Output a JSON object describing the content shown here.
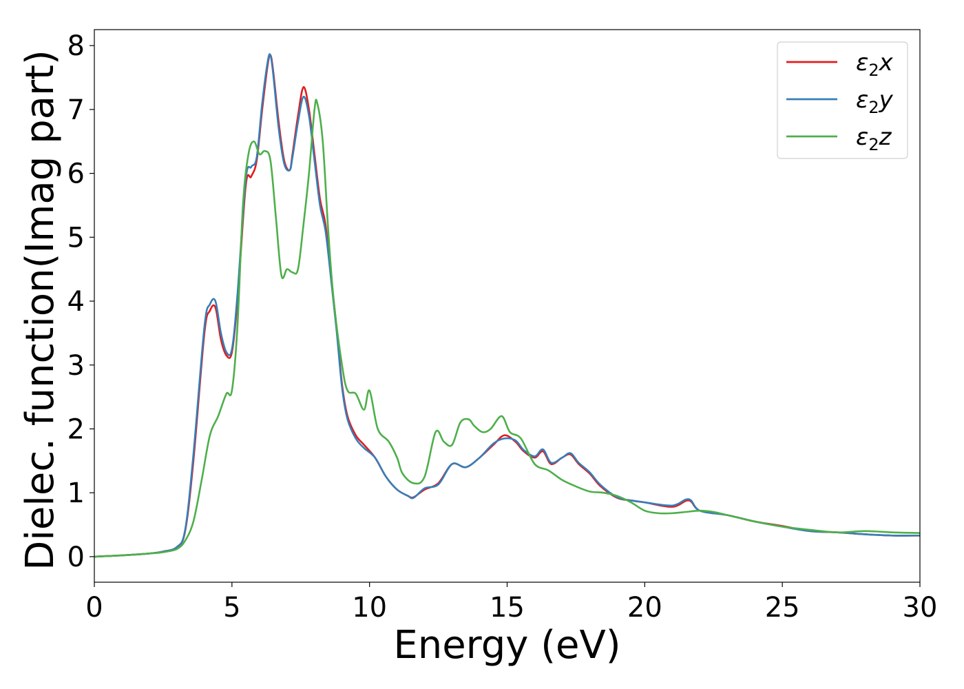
{
  "chart_data": {
    "type": "line",
    "xlabel": "Energy (eV)",
    "ylabel": "Dielec. function(Imag part)",
    "xlim": [
      0,
      30
    ],
    "ylim": [
      -0.4,
      8.25
    ],
    "xticks": [
      0,
      5,
      10,
      15,
      20,
      25,
      30
    ],
    "yticks": [
      0,
      1,
      2,
      3,
      4,
      5,
      6,
      7,
      8
    ],
    "grid": false,
    "legend_position": "top-right",
    "series": [
      {
        "name": "ε₂x",
        "legend_base": "ε",
        "legend_sub": "2",
        "legend_suffix": "x",
        "color": "#e41a1c",
        "x": [
          0,
          1,
          2,
          2.5,
          3,
          3.3,
          3.6,
          4.0,
          4.2,
          4.4,
          4.6,
          4.8,
          5.0,
          5.2,
          5.5,
          5.7,
          5.9,
          6.1,
          6.3,
          6.4,
          6.5,
          6.7,
          6.9,
          7.1,
          7.2,
          7.4,
          7.6,
          7.8,
          8.0,
          8.2,
          8.4,
          8.6,
          8.8,
          9.0,
          9.2,
          9.5,
          9.8,
          10.2,
          10.6,
          11.0,
          11.4,
          11.6,
          12.0,
          12.5,
          13.0,
          13.5,
          14.0,
          14.5,
          14.9,
          15.3,
          15.6,
          16.0,
          16.3,
          16.6,
          17.0,
          17.3,
          17.6,
          18.0,
          18.4,
          19.0,
          19.5,
          20.0,
          21.0,
          21.6,
          22.0,
          23.0,
          24.0,
          25.0,
          26.0,
          27.0,
          28.0,
          29.0,
          30.0
        ],
        "y": [
          0,
          0.02,
          0.05,
          0.08,
          0.15,
          0.4,
          1.5,
          3.5,
          3.85,
          3.9,
          3.4,
          3.15,
          3.2,
          4.0,
          5.8,
          5.95,
          6.2,
          7.0,
          7.7,
          7.85,
          7.6,
          6.8,
          6.2,
          6.05,
          6.3,
          6.9,
          7.35,
          7.0,
          6.3,
          5.6,
          5.2,
          4.4,
          3.6,
          2.7,
          2.2,
          1.9,
          1.75,
          1.55,
          1.25,
          1.05,
          0.95,
          0.93,
          1.05,
          1.15,
          1.45,
          1.4,
          1.55,
          1.75,
          1.9,
          1.8,
          1.65,
          1.55,
          1.65,
          1.45,
          1.55,
          1.6,
          1.45,
          1.3,
          1.1,
          0.92,
          0.88,
          0.85,
          0.78,
          0.88,
          0.72,
          0.65,
          0.55,
          0.48,
          0.4,
          0.38,
          0.35,
          0.33,
          0.33
        ]
      },
      {
        "name": "ε₂y",
        "legend_base": "ε",
        "legend_sub": "2",
        "legend_suffix": "y",
        "color": "#377eb8",
        "x": [
          0,
          1,
          2,
          2.5,
          3,
          3.3,
          3.6,
          4.0,
          4.2,
          4.4,
          4.6,
          4.8,
          5.0,
          5.2,
          5.5,
          5.7,
          5.9,
          6.1,
          6.3,
          6.4,
          6.5,
          6.7,
          6.9,
          7.1,
          7.2,
          7.4,
          7.6,
          7.8,
          8.0,
          8.2,
          8.4,
          8.6,
          8.8,
          9.0,
          9.2,
          9.5,
          9.8,
          10.2,
          10.6,
          11.0,
          11.4,
          11.6,
          12.0,
          12.5,
          13.0,
          13.5,
          14.0,
          14.5,
          14.9,
          15.3,
          15.6,
          16.0,
          16.3,
          16.6,
          17.0,
          17.3,
          17.6,
          18.0,
          18.4,
          19.0,
          19.5,
          20.0,
          21.0,
          21.6,
          22.0,
          23.0,
          24.0,
          25.0,
          26.0,
          27.0,
          28.0,
          29.0,
          30.0
        ],
        "y": [
          0,
          0.02,
          0.05,
          0.08,
          0.15,
          0.42,
          1.6,
          3.6,
          3.95,
          4.0,
          3.5,
          3.2,
          3.25,
          4.1,
          5.9,
          6.1,
          6.25,
          7.1,
          7.75,
          7.85,
          7.55,
          6.7,
          6.15,
          6.05,
          6.25,
          6.8,
          7.2,
          6.9,
          6.2,
          5.5,
          5.1,
          4.35,
          3.55,
          2.65,
          2.15,
          1.85,
          1.7,
          1.55,
          1.25,
          1.05,
          0.95,
          0.92,
          1.07,
          1.13,
          1.45,
          1.4,
          1.55,
          1.77,
          1.85,
          1.82,
          1.67,
          1.57,
          1.68,
          1.47,
          1.55,
          1.62,
          1.47,
          1.32,
          1.12,
          0.93,
          0.88,
          0.85,
          0.8,
          0.9,
          0.72,
          0.65,
          0.55,
          0.47,
          0.4,
          0.38,
          0.35,
          0.33,
          0.33
        ]
      },
      {
        "name": "ε₂z",
        "legend_base": "ε",
        "legend_sub": "2",
        "legend_suffix": "z",
        "color": "#4daf4a",
        "x": [
          0,
          1,
          2,
          2.5,
          3,
          3.3,
          3.6,
          3.9,
          4.2,
          4.5,
          4.8,
          5.0,
          5.2,
          5.4,
          5.6,
          5.8,
          6.0,
          6.2,
          6.4,
          6.6,
          6.8,
          7.0,
          7.2,
          7.4,
          7.6,
          7.8,
          8.0,
          8.1,
          8.3,
          8.5,
          8.7,
          9.0,
          9.2,
          9.5,
          9.8,
          10.0,
          10.3,
          10.7,
          11.0,
          11.2,
          11.6,
          12.0,
          12.4,
          12.7,
          13.0,
          13.3,
          13.6,
          13.8,
          14.1,
          14.4,
          14.8,
          15.1,
          15.5,
          16.0,
          16.5,
          17.0,
          17.5,
          18.0,
          18.5,
          19.0,
          19.5,
          20.0,
          20.5,
          21.0,
          21.5,
          22.0,
          22.5,
          23.0,
          23.5,
          24.0,
          25.0,
          26.0,
          27.0,
          28.0,
          29.0,
          30.0
        ],
        "y": [
          0,
          0.02,
          0.05,
          0.07,
          0.12,
          0.25,
          0.55,
          1.2,
          1.9,
          2.2,
          2.55,
          2.6,
          3.6,
          5.5,
          6.3,
          6.5,
          6.3,
          6.35,
          6.2,
          5.3,
          4.4,
          4.5,
          4.45,
          4.5,
          5.2,
          6.0,
          7.0,
          7.1,
          6.5,
          5.1,
          4.0,
          3.0,
          2.6,
          2.55,
          2.3,
          2.6,
          2.0,
          1.8,
          1.55,
          1.3,
          1.15,
          1.25,
          1.95,
          1.8,
          1.75,
          2.1,
          2.15,
          2.05,
          1.95,
          2.0,
          2.2,
          1.95,
          1.85,
          1.45,
          1.35,
          1.2,
          1.1,
          1.02,
          1.0,
          0.95,
          0.85,
          0.72,
          0.68,
          0.68,
          0.7,
          0.72,
          0.7,
          0.65,
          0.6,
          0.55,
          0.47,
          0.42,
          0.38,
          0.4,
          0.38,
          0.37
        ]
      }
    ]
  }
}
